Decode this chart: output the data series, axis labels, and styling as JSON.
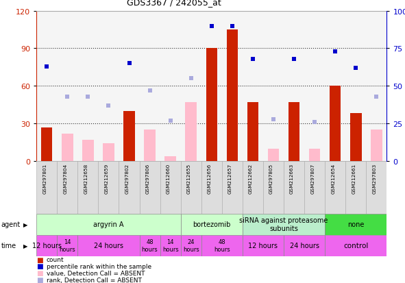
{
  "title": "GDS3367 / 242055_at",
  "samples": [
    "GSM297801",
    "GSM297804",
    "GSM212658",
    "GSM212659",
    "GSM297802",
    "GSM297806",
    "GSM212660",
    "GSM212655",
    "GSM212656",
    "GSM212657",
    "GSM212662",
    "GSM297805",
    "GSM212663",
    "GSM297807",
    "GSM212654",
    "GSM212661",
    "GSM297803"
  ],
  "count_present": [
    27,
    null,
    null,
    null,
    40,
    null,
    null,
    null,
    90,
    105,
    47,
    null,
    47,
    null,
    60,
    38,
    null
  ],
  "count_absent": [
    null,
    22,
    17,
    14,
    null,
    25,
    4,
    47,
    null,
    null,
    null,
    10,
    null,
    10,
    null,
    null,
    25
  ],
  "rank_present": [
    63,
    null,
    null,
    null,
    65,
    null,
    null,
    null,
    90,
    90,
    68,
    null,
    68,
    null,
    73,
    62,
    null
  ],
  "rank_absent": [
    null,
    43,
    43,
    37,
    null,
    47,
    27,
    55,
    null,
    null,
    null,
    28,
    null,
    26,
    null,
    null,
    43
  ],
  "left_ylim": [
    0,
    120
  ],
  "right_ylim": [
    0,
    100
  ],
  "left_yticks": [
    0,
    30,
    60,
    90,
    120
  ],
  "right_yticks": [
    0,
    25,
    50,
    75,
    100
  ],
  "right_yticklabels": [
    "0",
    "25",
    "50",
    "75",
    "100%"
  ],
  "bar_color_present": "#cc2200",
  "bar_color_absent": "#ffbbcc",
  "dot_color_present": "#0000cc",
  "dot_color_absent": "#aaaadd",
  "agent_groups": [
    {
      "label": "argyrin A",
      "start": 0,
      "end": 7,
      "color": "#ccffcc"
    },
    {
      "label": "bortezomib",
      "start": 7,
      "end": 10,
      "color": "#ccffcc"
    },
    {
      "label": "siRNA against proteasome\nsubunits",
      "start": 10,
      "end": 14,
      "color": "#bbeecc"
    },
    {
      "label": "none",
      "start": 14,
      "end": 17,
      "color": "#44dd44"
    }
  ],
  "time_groups": [
    {
      "label": "12 hours",
      "start": 0,
      "end": 1,
      "fontsize": 7.0
    },
    {
      "label": "14\nhours",
      "start": 1,
      "end": 2,
      "fontsize": 6.0
    },
    {
      "label": "24 hours",
      "start": 2,
      "end": 5,
      "fontsize": 7.0
    },
    {
      "label": "48\nhours",
      "start": 5,
      "end": 6,
      "fontsize": 6.0
    },
    {
      "label": "14\nhours",
      "start": 6,
      "end": 7,
      "fontsize": 6.0
    },
    {
      "label": "24\nhours",
      "start": 7,
      "end": 8,
      "fontsize": 6.0
    },
    {
      "label": "48\nhours",
      "start": 8,
      "end": 10,
      "fontsize": 6.0
    },
    {
      "label": "12 hours",
      "start": 10,
      "end": 12,
      "fontsize": 7.0
    },
    {
      "label": "24 hours",
      "start": 12,
      "end": 14,
      "fontsize": 7.0
    },
    {
      "label": "control",
      "start": 14,
      "end": 17,
      "fontsize": 7.5
    }
  ],
  "time_color": "#ee66ee",
  "bg_color": "#ffffff",
  "grid_color": "#333333",
  "plot_bg": "#f5f5f5"
}
